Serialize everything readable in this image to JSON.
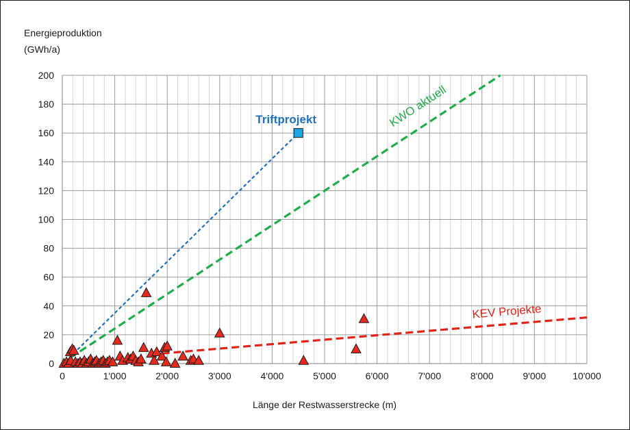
{
  "chart_data": {
    "type": "scatter",
    "ylabel_line1": "Energieproduktion",
    "ylabel_line2": "(GWh/a)",
    "xlabel": "Länge der Restwasserstrecke (m)",
    "xlim": [
      0,
      10000
    ],
    "ylim": [
      0,
      200
    ],
    "x_ticks": [
      0,
      1000,
      2000,
      3000,
      4000,
      5000,
      6000,
      7000,
      8000,
      9000,
      10000
    ],
    "x_tick_labels": [
      "0",
      "1'000",
      "2'000",
      "3'000",
      "4'000",
      "5'000",
      "6'000",
      "7'000",
      "8'000",
      "9'000",
      "10'000"
    ],
    "y_ticks": [
      0,
      20,
      40,
      60,
      80,
      100,
      120,
      140,
      160,
      180,
      200
    ],
    "y_tick_labels": [
      "0",
      "20",
      "40",
      "60",
      "80",
      "100",
      "120",
      "140",
      "160",
      "180",
      "200"
    ],
    "x_minor_step": 200,
    "grid": true,
    "points": [
      {
        "x": 30,
        "y": 0
      },
      {
        "x": 80,
        "y": 1
      },
      {
        "x": 120,
        "y": 0
      },
      {
        "x": 150,
        "y": 8
      },
      {
        "x": 190,
        "y": 10
      },
      {
        "x": 220,
        "y": 9
      },
      {
        "x": 160,
        "y": 2
      },
      {
        "x": 250,
        "y": 1
      },
      {
        "x": 300,
        "y": 0
      },
      {
        "x": 340,
        "y": 1
      },
      {
        "x": 380,
        "y": 0
      },
      {
        "x": 420,
        "y": 2
      },
      {
        "x": 460,
        "y": 0
      },
      {
        "x": 500,
        "y": 1
      },
      {
        "x": 540,
        "y": 3
      },
      {
        "x": 580,
        "y": 0
      },
      {
        "x": 620,
        "y": 1
      },
      {
        "x": 650,
        "y": 2
      },
      {
        "x": 700,
        "y": 0
      },
      {
        "x": 740,
        "y": 1
      },
      {
        "x": 780,
        "y": 2
      },
      {
        "x": 820,
        "y": 0
      },
      {
        "x": 860,
        "y": 1
      },
      {
        "x": 900,
        "y": 2
      },
      {
        "x": 960,
        "y": 1
      },
      {
        "x": 1050,
        "y": 16
      },
      {
        "x": 1100,
        "y": 5
      },
      {
        "x": 1150,
        "y": 2
      },
      {
        "x": 1250,
        "y": 4
      },
      {
        "x": 1300,
        "y": 3
      },
      {
        "x": 1350,
        "y": 5
      },
      {
        "x": 1400,
        "y": 2
      },
      {
        "x": 1450,
        "y": 1
      },
      {
        "x": 1500,
        "y": 3
      },
      {
        "x": 1550,
        "y": 11
      },
      {
        "x": 1600,
        "y": 49
      },
      {
        "x": 1700,
        "y": 7
      },
      {
        "x": 1750,
        "y": 2
      },
      {
        "x": 1800,
        "y": 8
      },
      {
        "x": 1900,
        "y": 5
      },
      {
        "x": 1950,
        "y": 11
      },
      {
        "x": 2000,
        "y": 12
      },
      {
        "x": 1980,
        "y": 1
      },
      {
        "x": 2150,
        "y": 0
      },
      {
        "x": 2300,
        "y": 5
      },
      {
        "x": 2450,
        "y": 2
      },
      {
        "x": 2500,
        "y": 3
      },
      {
        "x": 2600,
        "y": 2
      },
      {
        "x": 3000,
        "y": 21
      },
      {
        "x": 4600,
        "y": 2
      },
      {
        "x": 5600,
        "y": 10
      },
      {
        "x": 5750,
        "y": 31
      }
    ],
    "triftprojekt": {
      "label": "Triftprojekt",
      "x": 4500,
      "y": 160
    },
    "lines": [
      {
        "name": "Triftprojekt",
        "x": [
          130,
          4500
        ],
        "y": [
          4,
          160
        ],
        "color": "#1f6fbd"
      },
      {
        "name": "KWO aktuell",
        "x": [
          150,
          8350
        ],
        "y": [
          4,
          200
        ],
        "color": "#1fad4a"
      },
      {
        "name": "KEV Projekte",
        "x": [
          1900,
          10000
        ],
        "y": [
          7,
          32
        ],
        "color": "#e2231a"
      }
    ],
    "annotations": {
      "kwo": "KWO aktuell",
      "kev": "KEV Projekte"
    },
    "colors": {
      "triangle_fill": "#e82a1e",
      "triangle_stroke": "#1a1a1a",
      "square_fill": "#1ba7e3",
      "trift_label": "#1f6fbd",
      "kwo": "#1fad4a",
      "kev": "#e2231a"
    }
  }
}
